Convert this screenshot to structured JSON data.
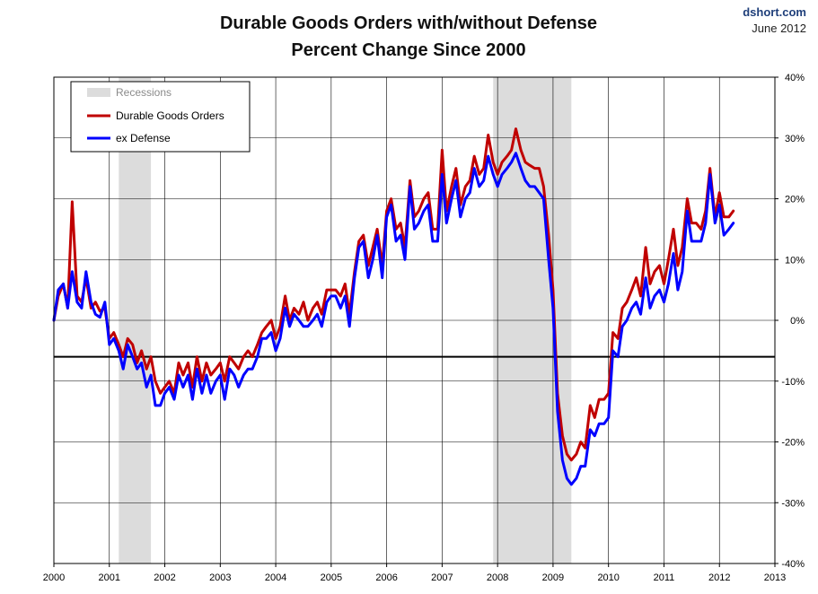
{
  "chart_data": {
    "type": "line",
    "title": "Durable Goods Orders with/without Defense",
    "subtitle": "Percent Change Since 2000",
    "source": "dshort.com",
    "date": "June 2012",
    "xlabel": "",
    "ylabel": "",
    "xlim": [
      2000,
      2013
    ],
    "ylim": [
      -40,
      40
    ],
    "x_ticks": [
      "2000",
      "2001",
      "2002",
      "2003",
      "2004",
      "2005",
      "2006",
      "2007",
      "2008",
      "2009",
      "2010",
      "2011",
      "2012",
      "2013"
    ],
    "y_ticks": [
      {
        "value": 40,
        "label": "40%"
      },
      {
        "value": 30,
        "label": "30%"
      },
      {
        "value": 20,
        "label": "20%"
      },
      {
        "value": 10,
        "label": "10%"
      },
      {
        "value": 0,
        "label": "0%"
      },
      {
        "value": -10,
        "label": "-10%"
      },
      {
        "value": -20,
        "label": "-20%"
      },
      {
        "value": -30,
        "label": "-30%"
      },
      {
        "value": -40,
        "label": "-40%"
      }
    ],
    "y_axis_side": "right",
    "grid": true,
    "legend_position": "top-left",
    "reference_line": -6,
    "recessions": [
      {
        "start": 2001.17,
        "end": 2001.75
      },
      {
        "start": 2007.92,
        "end": 2009.33
      }
    ],
    "legend": [
      "Recessions",
      "Durable Goods Orders",
      "ex Defense"
    ],
    "series": [
      {
        "name": "Durable Goods Orders",
        "color": "#c00000",
        "points": [
          [
            2000.0,
            0
          ],
          [
            2000.08,
            4
          ],
          [
            2000.17,
            6
          ],
          [
            2000.25,
            2
          ],
          [
            2000.33,
            19.5
          ],
          [
            2000.42,
            4
          ],
          [
            2000.5,
            3
          ],
          [
            2000.58,
            7
          ],
          [
            2000.67,
            2
          ],
          [
            2000.75,
            3
          ],
          [
            2000.83,
            1.5
          ],
          [
            2000.92,
            2
          ],
          [
            2001.0,
            -3
          ],
          [
            2001.08,
            -2
          ],
          [
            2001.17,
            -4
          ],
          [
            2001.25,
            -6
          ],
          [
            2001.33,
            -3
          ],
          [
            2001.42,
            -4
          ],
          [
            2001.5,
            -7
          ],
          [
            2001.58,
            -5
          ],
          [
            2001.67,
            -8
          ],
          [
            2001.75,
            -6
          ],
          [
            2001.83,
            -10
          ],
          [
            2001.92,
            -12
          ],
          [
            2002.0,
            -11
          ],
          [
            2002.08,
            -10
          ],
          [
            2002.17,
            -12
          ],
          [
            2002.25,
            -7
          ],
          [
            2002.33,
            -9
          ],
          [
            2002.42,
            -7
          ],
          [
            2002.5,
            -11
          ],
          [
            2002.58,
            -6
          ],
          [
            2002.67,
            -10
          ],
          [
            2002.75,
            -7
          ],
          [
            2002.83,
            -9
          ],
          [
            2002.92,
            -8
          ],
          [
            2003.0,
            -7
          ],
          [
            2003.08,
            -10
          ],
          [
            2003.17,
            -6
          ],
          [
            2003.25,
            -7
          ],
          [
            2003.33,
            -8
          ],
          [
            2003.42,
            -6
          ],
          [
            2003.5,
            -5
          ],
          [
            2003.58,
            -6
          ],
          [
            2003.67,
            -4
          ],
          [
            2003.75,
            -2
          ],
          [
            2003.83,
            -1
          ],
          [
            2003.92,
            0
          ],
          [
            2004.0,
            -3
          ],
          [
            2004.08,
            -1
          ],
          [
            2004.17,
            4
          ],
          [
            2004.25,
            0
          ],
          [
            2004.33,
            2
          ],
          [
            2004.42,
            1
          ],
          [
            2004.5,
            3
          ],
          [
            2004.58,
            0
          ],
          [
            2004.67,
            2
          ],
          [
            2004.75,
            3
          ],
          [
            2004.83,
            1
          ],
          [
            2004.92,
            5
          ],
          [
            2005.0,
            5
          ],
          [
            2005.08,
            5
          ],
          [
            2005.17,
            4
          ],
          [
            2005.25,
            6
          ],
          [
            2005.33,
            1
          ],
          [
            2005.42,
            8
          ],
          [
            2005.5,
            13
          ],
          [
            2005.58,
            14
          ],
          [
            2005.67,
            9
          ],
          [
            2005.75,
            12
          ],
          [
            2005.83,
            15
          ],
          [
            2005.92,
            9
          ],
          [
            2006.0,
            18
          ],
          [
            2006.08,
            20
          ],
          [
            2006.17,
            15
          ],
          [
            2006.25,
            16
          ],
          [
            2006.33,
            12
          ],
          [
            2006.42,
            23
          ],
          [
            2006.5,
            17
          ],
          [
            2006.58,
            18
          ],
          [
            2006.67,
            20
          ],
          [
            2006.75,
            21
          ],
          [
            2006.83,
            15
          ],
          [
            2006.92,
            15
          ],
          [
            2007.0,
            28
          ],
          [
            2007.08,
            18
          ],
          [
            2007.17,
            22
          ],
          [
            2007.25,
            25
          ],
          [
            2007.33,
            19
          ],
          [
            2007.42,
            22
          ],
          [
            2007.5,
            23
          ],
          [
            2007.58,
            27
          ],
          [
            2007.67,
            24
          ],
          [
            2007.75,
            25
          ],
          [
            2007.83,
            30.5
          ],
          [
            2007.92,
            26
          ],
          [
            2008.0,
            24
          ],
          [
            2008.08,
            26
          ],
          [
            2008.17,
            27
          ],
          [
            2008.25,
            28
          ],
          [
            2008.33,
            31.5
          ],
          [
            2008.42,
            28
          ],
          [
            2008.5,
            26
          ],
          [
            2008.58,
            25.5
          ],
          [
            2008.67,
            25
          ],
          [
            2008.75,
            25
          ],
          [
            2008.83,
            22
          ],
          [
            2008.92,
            14
          ],
          [
            2009.0,
            5
          ],
          [
            2009.08,
            -12
          ],
          [
            2009.17,
            -19
          ],
          [
            2009.25,
            -22
          ],
          [
            2009.33,
            -23
          ],
          [
            2009.42,
            -22
          ],
          [
            2009.5,
            -20
          ],
          [
            2009.58,
            -21
          ],
          [
            2009.67,
            -14
          ],
          [
            2009.75,
            -16
          ],
          [
            2009.83,
            -13
          ],
          [
            2009.92,
            -13
          ],
          [
            2010.0,
            -12
          ],
          [
            2010.08,
            -2
          ],
          [
            2010.17,
            -3
          ],
          [
            2010.25,
            2
          ],
          [
            2010.33,
            3
          ],
          [
            2010.42,
            5
          ],
          [
            2010.5,
            7
          ],
          [
            2010.58,
            4
          ],
          [
            2010.67,
            12
          ],
          [
            2010.75,
            6
          ],
          [
            2010.83,
            8
          ],
          [
            2010.92,
            9
          ],
          [
            2011.0,
            6
          ],
          [
            2011.08,
            10
          ],
          [
            2011.17,
            15
          ],
          [
            2011.25,
            9
          ],
          [
            2011.33,
            12
          ],
          [
            2011.42,
            20
          ],
          [
            2011.5,
            16
          ],
          [
            2011.58,
            16
          ],
          [
            2011.67,
            15
          ],
          [
            2011.75,
            18
          ],
          [
            2011.83,
            25
          ],
          [
            2011.92,
            17
          ],
          [
            2012.0,
            21
          ],
          [
            2012.08,
            17
          ],
          [
            2012.17,
            17
          ],
          [
            2012.25,
            18
          ]
        ]
      },
      {
        "name": "ex Defense",
        "color": "#0000ff",
        "points": [
          [
            2000.0,
            0
          ],
          [
            2000.08,
            5
          ],
          [
            2000.17,
            6
          ],
          [
            2000.25,
            2
          ],
          [
            2000.33,
            8
          ],
          [
            2000.42,
            3
          ],
          [
            2000.5,
            2
          ],
          [
            2000.58,
            8
          ],
          [
            2000.67,
            3
          ],
          [
            2000.75,
            1
          ],
          [
            2000.83,
            0.5
          ],
          [
            2000.92,
            3
          ],
          [
            2001.0,
            -4
          ],
          [
            2001.08,
            -3
          ],
          [
            2001.17,
            -5
          ],
          [
            2001.25,
            -8
          ],
          [
            2001.33,
            -4
          ],
          [
            2001.42,
            -6
          ],
          [
            2001.5,
            -8
          ],
          [
            2001.58,
            -7
          ],
          [
            2001.67,
            -11
          ],
          [
            2001.75,
            -9
          ],
          [
            2001.83,
            -14
          ],
          [
            2001.92,
            -14
          ],
          [
            2002.0,
            -12
          ],
          [
            2002.08,
            -11
          ],
          [
            2002.17,
            -13
          ],
          [
            2002.25,
            -9
          ],
          [
            2002.33,
            -11
          ],
          [
            2002.42,
            -9
          ],
          [
            2002.5,
            -13
          ],
          [
            2002.58,
            -8
          ],
          [
            2002.67,
            -12
          ],
          [
            2002.75,
            -9
          ],
          [
            2002.83,
            -12
          ],
          [
            2002.92,
            -10
          ],
          [
            2003.0,
            -9
          ],
          [
            2003.08,
            -13
          ],
          [
            2003.17,
            -8
          ],
          [
            2003.25,
            -9
          ],
          [
            2003.33,
            -11
          ],
          [
            2003.42,
            -9
          ],
          [
            2003.5,
            -8
          ],
          [
            2003.58,
            -8
          ],
          [
            2003.67,
            -6
          ],
          [
            2003.75,
            -3
          ],
          [
            2003.83,
            -3
          ],
          [
            2003.92,
            -2
          ],
          [
            2004.0,
            -5
          ],
          [
            2004.08,
            -3
          ],
          [
            2004.17,
            2
          ],
          [
            2004.25,
            -1
          ],
          [
            2004.33,
            1
          ],
          [
            2004.42,
            0
          ],
          [
            2004.5,
            -1
          ],
          [
            2004.58,
            -1
          ],
          [
            2004.67,
            0
          ],
          [
            2004.75,
            1
          ],
          [
            2004.83,
            -1
          ],
          [
            2004.92,
            3
          ],
          [
            2005.0,
            4
          ],
          [
            2005.08,
            4
          ],
          [
            2005.17,
            2
          ],
          [
            2005.25,
            4
          ],
          [
            2005.33,
            -1
          ],
          [
            2005.42,
            7
          ],
          [
            2005.5,
            12
          ],
          [
            2005.58,
            13
          ],
          [
            2005.67,
            7
          ],
          [
            2005.75,
            10
          ],
          [
            2005.83,
            14
          ],
          [
            2005.92,
            7
          ],
          [
            2006.0,
            17
          ],
          [
            2006.08,
            19
          ],
          [
            2006.17,
            13
          ],
          [
            2006.25,
            14
          ],
          [
            2006.33,
            10
          ],
          [
            2006.42,
            22
          ],
          [
            2006.5,
            15
          ],
          [
            2006.58,
            16
          ],
          [
            2006.67,
            18
          ],
          [
            2006.75,
            19
          ],
          [
            2006.83,
            13
          ],
          [
            2006.92,
            13
          ],
          [
            2007.0,
            24
          ],
          [
            2007.08,
            16
          ],
          [
            2007.17,
            20
          ],
          [
            2007.25,
            23
          ],
          [
            2007.33,
            17
          ],
          [
            2007.42,
            20
          ],
          [
            2007.5,
            21
          ],
          [
            2007.58,
            25
          ],
          [
            2007.67,
            22
          ],
          [
            2007.75,
            23
          ],
          [
            2007.83,
            27
          ],
          [
            2007.92,
            24
          ],
          [
            2008.0,
            22
          ],
          [
            2008.08,
            24
          ],
          [
            2008.17,
            25
          ],
          [
            2008.25,
            26
          ],
          [
            2008.33,
            27.5
          ],
          [
            2008.42,
            25
          ],
          [
            2008.5,
            23
          ],
          [
            2008.58,
            22
          ],
          [
            2008.67,
            22
          ],
          [
            2008.75,
            21
          ],
          [
            2008.83,
            20
          ],
          [
            2008.92,
            10
          ],
          [
            2009.0,
            2
          ],
          [
            2009.08,
            -15
          ],
          [
            2009.17,
            -23
          ],
          [
            2009.25,
            -26
          ],
          [
            2009.33,
            -27
          ],
          [
            2009.42,
            -26
          ],
          [
            2009.5,
            -24
          ],
          [
            2009.58,
            -24
          ],
          [
            2009.67,
            -18
          ],
          [
            2009.75,
            -19
          ],
          [
            2009.83,
            -17
          ],
          [
            2009.92,
            -17
          ],
          [
            2010.0,
            -16
          ],
          [
            2010.08,
            -5
          ],
          [
            2010.17,
            -6
          ],
          [
            2010.25,
            -1
          ],
          [
            2010.33,
            0
          ],
          [
            2010.42,
            2
          ],
          [
            2010.5,
            3
          ],
          [
            2010.58,
            1
          ],
          [
            2010.67,
            7
          ],
          [
            2010.75,
            2
          ],
          [
            2010.83,
            4
          ],
          [
            2010.92,
            5
          ],
          [
            2011.0,
            3
          ],
          [
            2011.08,
            6
          ],
          [
            2011.17,
            11
          ],
          [
            2011.25,
            5
          ],
          [
            2011.33,
            8
          ],
          [
            2011.42,
            18
          ],
          [
            2011.5,
            13
          ],
          [
            2011.58,
            13
          ],
          [
            2011.67,
            13
          ],
          [
            2011.75,
            16
          ],
          [
            2011.83,
            24
          ],
          [
            2011.92,
            16
          ],
          [
            2012.0,
            19
          ],
          [
            2012.08,
            14
          ],
          [
            2012.17,
            15
          ],
          [
            2012.25,
            16
          ]
        ]
      }
    ]
  }
}
